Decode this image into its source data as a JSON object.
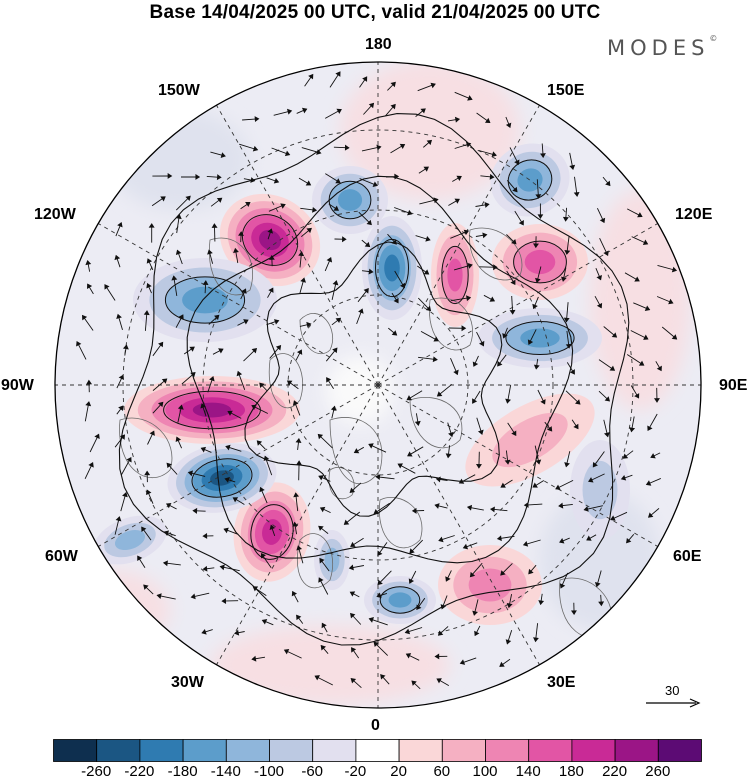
{
  "header": {
    "title": "Base 14/04/2025 00 UTC, valid 21/04/2025 00 UTC",
    "brand": "MODES",
    "brand_mark": "©"
  },
  "map": {
    "projection": "north polar stereographic",
    "longitude_labels": [
      {
        "key": "lon_180",
        "text": "180"
      },
      {
        "key": "lon_150e",
        "text": "150E"
      },
      {
        "key": "lon_120e",
        "text": "120E"
      },
      {
        "key": "lon_90e",
        "text": "90E"
      },
      {
        "key": "lon_60e",
        "text": "60E"
      },
      {
        "key": "lon_30e",
        "text": "30E"
      },
      {
        "key": "lon_0",
        "text": "0"
      },
      {
        "key": "lon_30w",
        "text": "30W"
      },
      {
        "key": "lon_60w",
        "text": "60W"
      },
      {
        "key": "lon_90w",
        "text": "90W"
      },
      {
        "key": "lon_120w",
        "text": "120W"
      },
      {
        "key": "lon_150w",
        "text": "150W"
      }
    ],
    "reference_vector": {
      "label": "30"
    },
    "anomaly_centers": [
      {
        "sign": "positive",
        "level": 220,
        "location": "Labrador Sea / Baffin Bay"
      },
      {
        "sign": "positive",
        "level": 220,
        "location": "Gulf of Alaska"
      },
      {
        "sign": "positive",
        "level": 180,
        "location": "Western Canada"
      },
      {
        "sign": "positive",
        "level": 160,
        "location": "Bering Strait"
      },
      {
        "sign": "positive",
        "level": 140,
        "location": "Eastern Siberia"
      },
      {
        "sign": "positive",
        "level": 120,
        "location": "Eastern Europe"
      },
      {
        "sign": "positive",
        "level": 60,
        "location": "Central Asia"
      },
      {
        "sign": "negative",
        "level": -240,
        "location": "Hudson Bay"
      },
      {
        "sign": "negative",
        "level": -200,
        "location": "Western Alaska / Bering Sea"
      },
      {
        "sign": "negative",
        "level": -160,
        "location": "North Pacific"
      },
      {
        "sign": "negative",
        "level": -160,
        "location": "Central Siberia"
      },
      {
        "sign": "negative",
        "level": -140,
        "location": "Northwest Canada"
      },
      {
        "sign": "negative",
        "level": -140,
        "location": "Kamchatka"
      },
      {
        "sign": "negative",
        "level": -140,
        "location": "Scandinavia"
      },
      {
        "sign": "negative",
        "level": -120,
        "location": "Greenland Sea"
      },
      {
        "sign": "negative",
        "level": -100,
        "location": "Northwest Atlantic"
      },
      {
        "sign": "negative",
        "level": -80,
        "location": "Central Asia / Kazakhstan"
      }
    ]
  },
  "colorbar": {
    "colors": [
      "#0e2f4f",
      "#1b5683",
      "#2f7bb1",
      "#5c9dcb",
      "#8fb6db",
      "#bcc9e2",
      "#e2e0ef",
      "#ffffff",
      "#fad7d8",
      "#f5b0c2",
      "#ee85b3",
      "#e255a5",
      "#c92a96",
      "#9b1586",
      "#5c0b74"
    ],
    "labels": [
      "-260",
      "-220",
      "-180",
      "-140",
      "-100",
      "-60",
      "-20",
      "20",
      "60",
      "100",
      "140",
      "180",
      "220",
      "260"
    ]
  }
}
